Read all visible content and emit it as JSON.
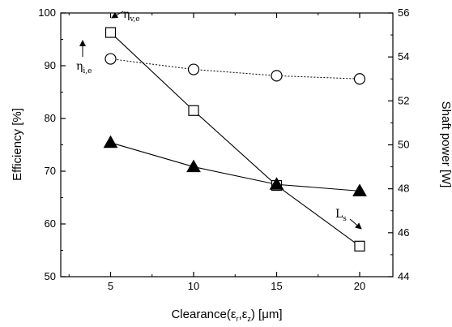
{
  "chart_data": {
    "type": "line",
    "title": "",
    "xlabel": "Clearance(ε",
    "xlabel_sub1": "r",
    "xlabel_mid": ",ε",
    "xlabel_sub2": "z",
    "xlabel_tail": ") [μm]",
    "ylabel": "Efficiency [%]",
    "y2label": "Shaft power [W]",
    "xlim": [
      2,
      22
    ],
    "ylim": [
      50,
      100
    ],
    "y2lim": [
      44,
      56
    ],
    "xticks": [
      "5",
      "10",
      "15",
      "20"
    ],
    "yticks": [
      "50",
      "60",
      "70",
      "80",
      "90",
      "100"
    ],
    "y2ticks": [
      "44",
      "46",
      "48",
      "50",
      "52",
      "54",
      "56"
    ],
    "x": [
      5,
      10,
      15,
      20
    ],
    "series": [
      {
        "marker": "square-open",
        "axis": "left",
        "line": "solid",
        "values": [
          96.3,
          81.5,
          67.3,
          55.8
        ]
      },
      {
        "marker": "circle-open",
        "axis": "left",
        "line": "dotted",
        "values": [
          91.3,
          89.3,
          88.1,
          87.5
        ]
      },
      {
        "marker": "triangle-filled",
        "axis": "right",
        "line": "solid",
        "values": [
          50.1,
          49.0,
          48.2,
          47.9
        ]
      }
    ],
    "annotations": [
      {
        "main": "η",
        "sub": "v,e"
      },
      {
        "main": "η",
        "sub": "i,e"
      },
      {
        "main": "L",
        "sub": "s"
      }
    ],
    "grid": false,
    "legend": "none"
  }
}
